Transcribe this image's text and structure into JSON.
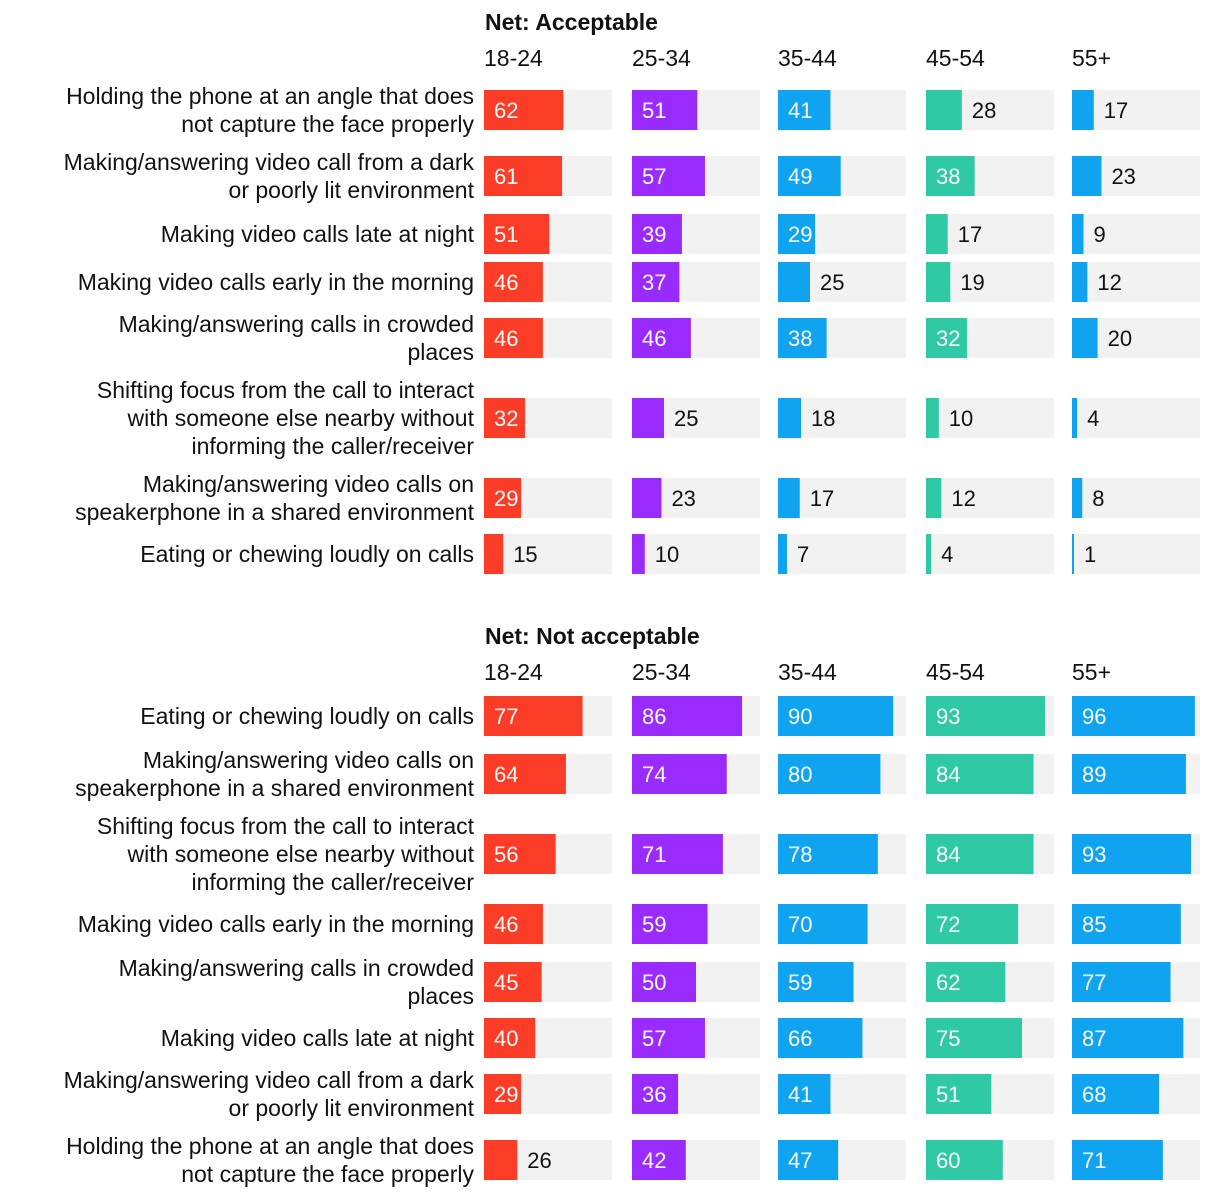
{
  "colors": {
    "18-24": "#fb3c26",
    "25-34": "#9a2bff",
    "35-44": "#10a3ef",
    "45-54": "#2fcaa5",
    "55+": "#10a3ef",
    "track": "#f2f2f2",
    "text": "#111111",
    "text_on_bar": "#ffffff"
  },
  "chart_data": [
    {
      "type": "bar",
      "orientation": "horizontal",
      "title": "Net: Acceptable",
      "categories": [
        "Holding the phone at an angle that does not capture the face properly",
        "Making/answering video call from a dark or poorly lit environment",
        "Making video calls late at night",
        "Making video calls early in the morning",
        "Making/answering calls in crowded places",
        "Shifting focus from the call to interact with someone else nearby without informing the caller/receiver",
        "Making/answering video calls on speakerphone in a shared environment",
        "Eating or chewing loudly on calls"
      ],
      "series": [
        {
          "name": "18-24",
          "values": [
            62,
            61,
            51,
            46,
            46,
            32,
            29,
            15
          ]
        },
        {
          "name": "25-34",
          "values": [
            51,
            57,
            39,
            37,
            46,
            25,
            23,
            10
          ]
        },
        {
          "name": "35-44",
          "values": [
            41,
            49,
            29,
            25,
            38,
            18,
            17,
            7
          ]
        },
        {
          "name": "45-54",
          "values": [
            28,
            38,
            17,
            19,
            32,
            10,
            12,
            4
          ]
        },
        {
          "name": "55+",
          "values": [
            17,
            23,
            9,
            12,
            20,
            4,
            8,
            1
          ]
        }
      ],
      "xlim": [
        0,
        100
      ]
    },
    {
      "type": "bar",
      "orientation": "horizontal",
      "title": "Net: Not acceptable",
      "categories": [
        "Eating or chewing loudly on calls",
        "Making/answering video calls on speakerphone in a shared environment",
        "Shifting focus from the call to interact with someone else nearby without informing the caller/receiver",
        "Making video calls early in the morning",
        "Making/answering calls in crowded places",
        "Making video calls late at night",
        "Making/answering video call from a dark or poorly lit environment",
        "Holding the phone at an angle that does not capture the face properly"
      ],
      "series": [
        {
          "name": "18-24",
          "values": [
            77,
            64,
            56,
            46,
            45,
            40,
            29,
            26
          ]
        },
        {
          "name": "25-34",
          "values": [
            86,
            74,
            71,
            59,
            50,
            57,
            36,
            42
          ]
        },
        {
          "name": "35-44",
          "values": [
            90,
            80,
            78,
            70,
            59,
            66,
            41,
            47
          ]
        },
        {
          "name": "45-54",
          "values": [
            93,
            84,
            84,
            72,
            62,
            75,
            51,
            60
          ]
        },
        {
          "name": "55+",
          "values": [
            96,
            89,
            93,
            85,
            77,
            87,
            68,
            71
          ]
        }
      ],
      "xlim": [
        0,
        100
      ]
    }
  ]
}
